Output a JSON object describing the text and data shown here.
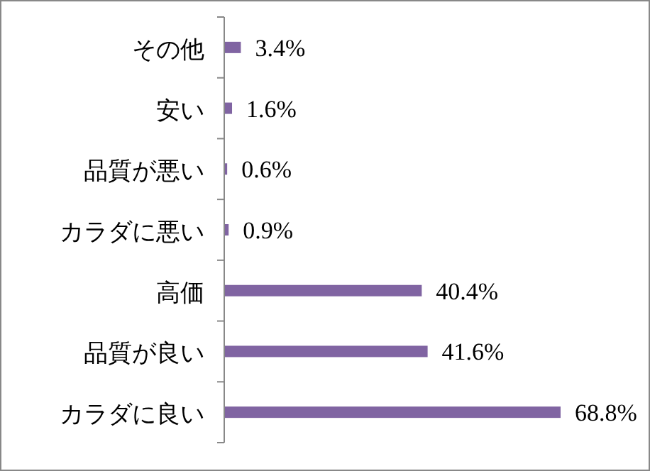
{
  "chart_data": {
    "type": "bar",
    "orientation": "horizontal",
    "color": "#8064a2",
    "categories": [
      "その他",
      "安い",
      "品質が悪い",
      "カラダに悪い",
      "高価",
      "品質が良い",
      "カラダに良い"
    ],
    "values": [
      3.4,
      1.6,
      0.6,
      0.9,
      40.4,
      41.6,
      68.8
    ],
    "value_labels": [
      "3.4%",
      "1.6%",
      "0.6%",
      "0.9%",
      "40.4%",
      "41.6%",
      "68.8%"
    ]
  }
}
